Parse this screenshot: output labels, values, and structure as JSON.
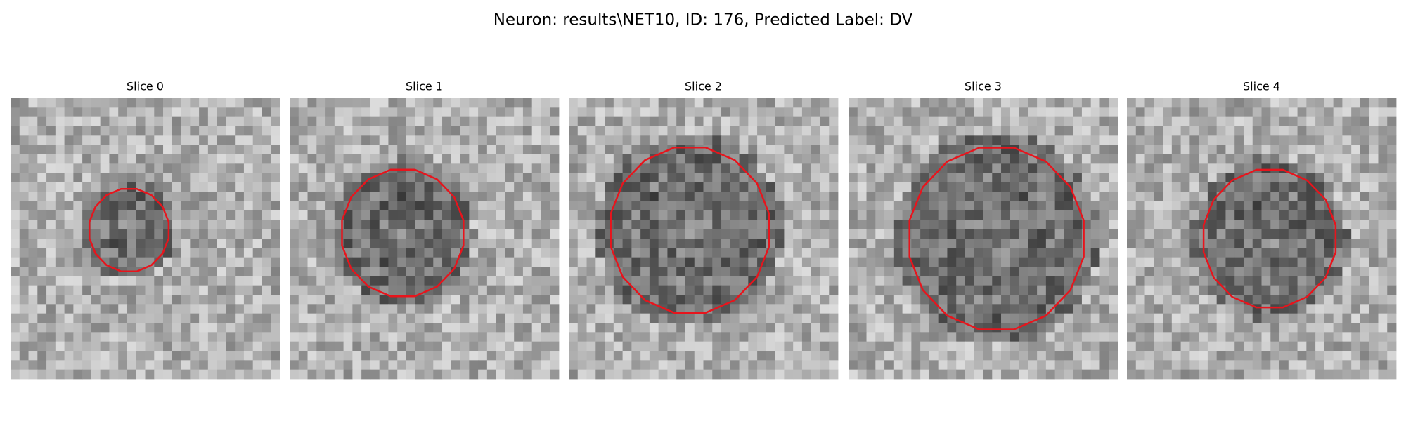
{
  "title": "Neuron: results\\NET10, ID: 176, Predicted Label: DV",
  "panels": [
    {
      "title": "Slice 0"
    },
    {
      "title": "Slice 1"
    },
    {
      "title": "Slice 2"
    },
    {
      "title": "Slice 3"
    },
    {
      "title": "Slice 4"
    }
  ]
}
